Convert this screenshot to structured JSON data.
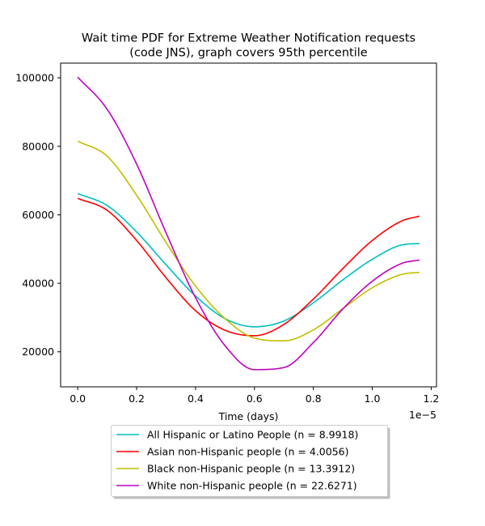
{
  "chart_data": {
    "type": "line",
    "title_line1": "Wait time PDF for Extreme Weather Notification  requests",
    "title_line2": "(code JNS), graph covers 95th percentile",
    "xlabel": "Time (days)",
    "x_offset_label": "1e−5",
    "ylabel": "",
    "xlim": [
      -0.058,
      1.218
    ],
    "ylim": [
      9780,
      104280
    ],
    "xticks": [
      0.0,
      0.2,
      0.4,
      0.6,
      0.8,
      1.0,
      1.2
    ],
    "xtick_labels": [
      "0.0",
      "0.2",
      "0.4",
      "0.6",
      "0.8",
      "1.0",
      "1.2"
    ],
    "yticks": [
      20000,
      40000,
      60000,
      80000,
      100000
    ],
    "ytick_labels": [
      "20000",
      "40000",
      "60000",
      "80000",
      "100000"
    ],
    "grid": false,
    "legend_position": "below-plot",
    "series": [
      {
        "name": "All Hispanic or Latino People (n = 8.9918)",
        "color": "#00bfbf",
        "x": [
          0.0,
          0.1,
          0.2,
          0.3,
          0.4,
          0.5,
          0.6,
          0.7,
          0.8,
          0.9,
          1.0,
          1.1,
          1.16
        ],
        "y": [
          66200,
          62700,
          55000,
          45400,
          36300,
          29700,
          27300,
          29000,
          34300,
          41000,
          47000,
          51200,
          51600
        ]
      },
      {
        "name": "Asian non-Hispanic people (n = 4.0056)",
        "color": "#ff0000",
        "x": [
          0.0,
          0.1,
          0.2,
          0.3,
          0.4,
          0.5,
          0.6,
          0.7,
          0.8,
          0.9,
          1.0,
          1.1,
          1.16
        ],
        "y": [
          64800,
          61300,
          52500,
          41600,
          32000,
          26300,
          24700,
          28000,
          35400,
          44300,
          52500,
          58200,
          59600
        ]
      },
      {
        "name": "Black non-Hispanic people (n = 13.3912)",
        "color": "#bfbf00",
        "x": [
          0.0,
          0.1,
          0.2,
          0.3,
          0.4,
          0.5,
          0.6,
          0.7,
          0.8,
          0.9,
          1.0,
          1.1,
          1.16
        ],
        "y": [
          81500,
          77100,
          65700,
          51900,
          39200,
          29700,
          24000,
          23200,
          26400,
          32600,
          38700,
          42600,
          43200
        ]
      },
      {
        "name": "White non-Hispanic people (n = 22.6271)",
        "color": "#bf00bf",
        "x": [
          0.0,
          0.1,
          0.2,
          0.3,
          0.4,
          0.5,
          0.6,
          0.7,
          0.8,
          0.9,
          1.0,
          1.1,
          1.16
        ],
        "y": [
          100200,
          90800,
          74800,
          54700,
          35800,
          21800,
          14800,
          15400,
          22700,
          32500,
          40600,
          45800,
          46800
        ]
      }
    ]
  }
}
